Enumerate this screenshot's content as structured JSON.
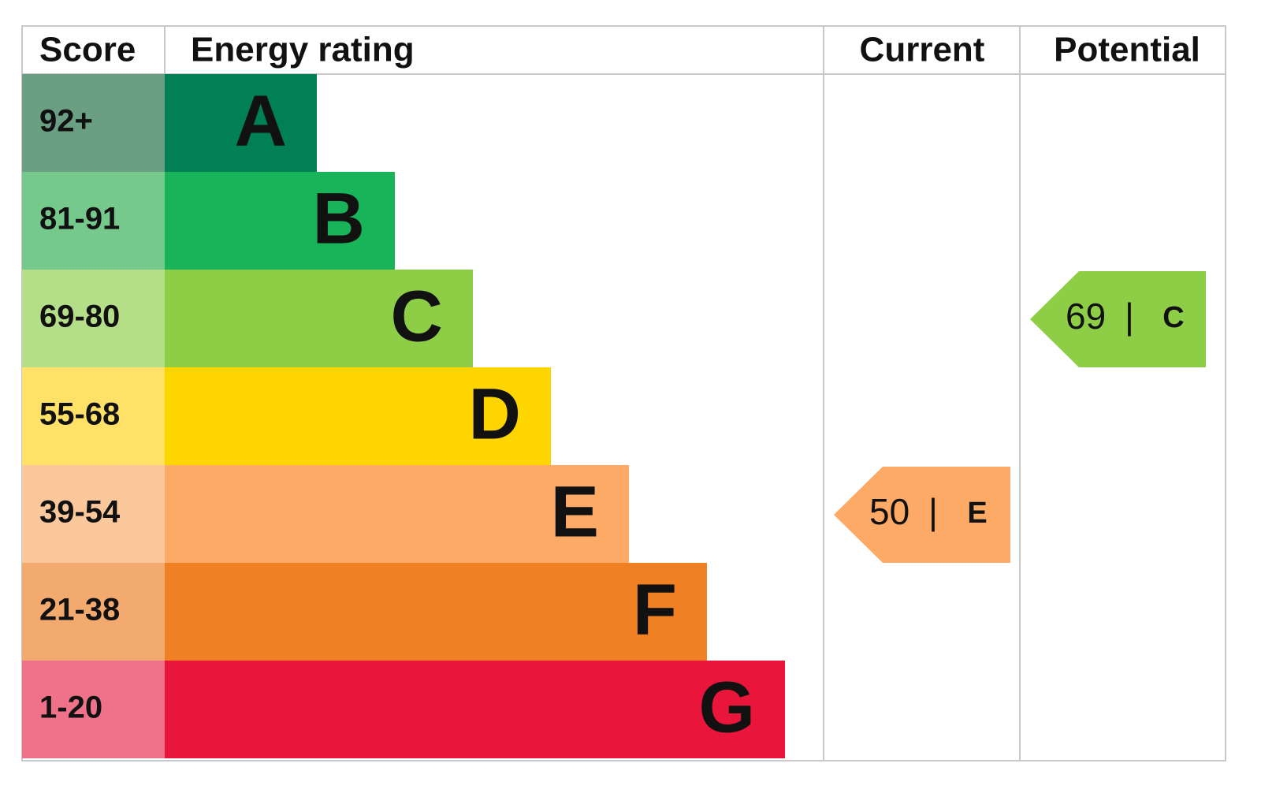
{
  "chart_data": {
    "type": "epc",
    "headers": {
      "score": "Score",
      "rating": "Energy rating",
      "current": "Current",
      "potential": "Potential"
    },
    "bands": [
      {
        "score": "92+",
        "letter": "A",
        "color": "#008054",
        "score_color": "#6a9f84"
      },
      {
        "score": "81-91",
        "letter": "B",
        "color": "#19b459",
        "score_color": "#76c98c"
      },
      {
        "score": "69-80",
        "letter": "C",
        "color": "#8dce46",
        "score_color": "#b4de88"
      },
      {
        "score": "55-68",
        "letter": "D",
        "color": "#ffd500",
        "score_color": "#ffe168"
      },
      {
        "score": "39-54",
        "letter": "E",
        "color": "#fcaa65",
        "score_color": "#fbc89c"
      },
      {
        "score": "21-38",
        "letter": "F",
        "color": "#ef8023",
        "score_color": "#f2aa6e"
      },
      {
        "score": "1-20",
        "letter": "G",
        "color": "#e9153b",
        "score_color": "#f0728a"
      }
    ],
    "current": {
      "value": 50,
      "separator": "|",
      "rating": "E"
    },
    "potential": {
      "value": 69,
      "separator": "|",
      "rating": "C"
    }
  }
}
